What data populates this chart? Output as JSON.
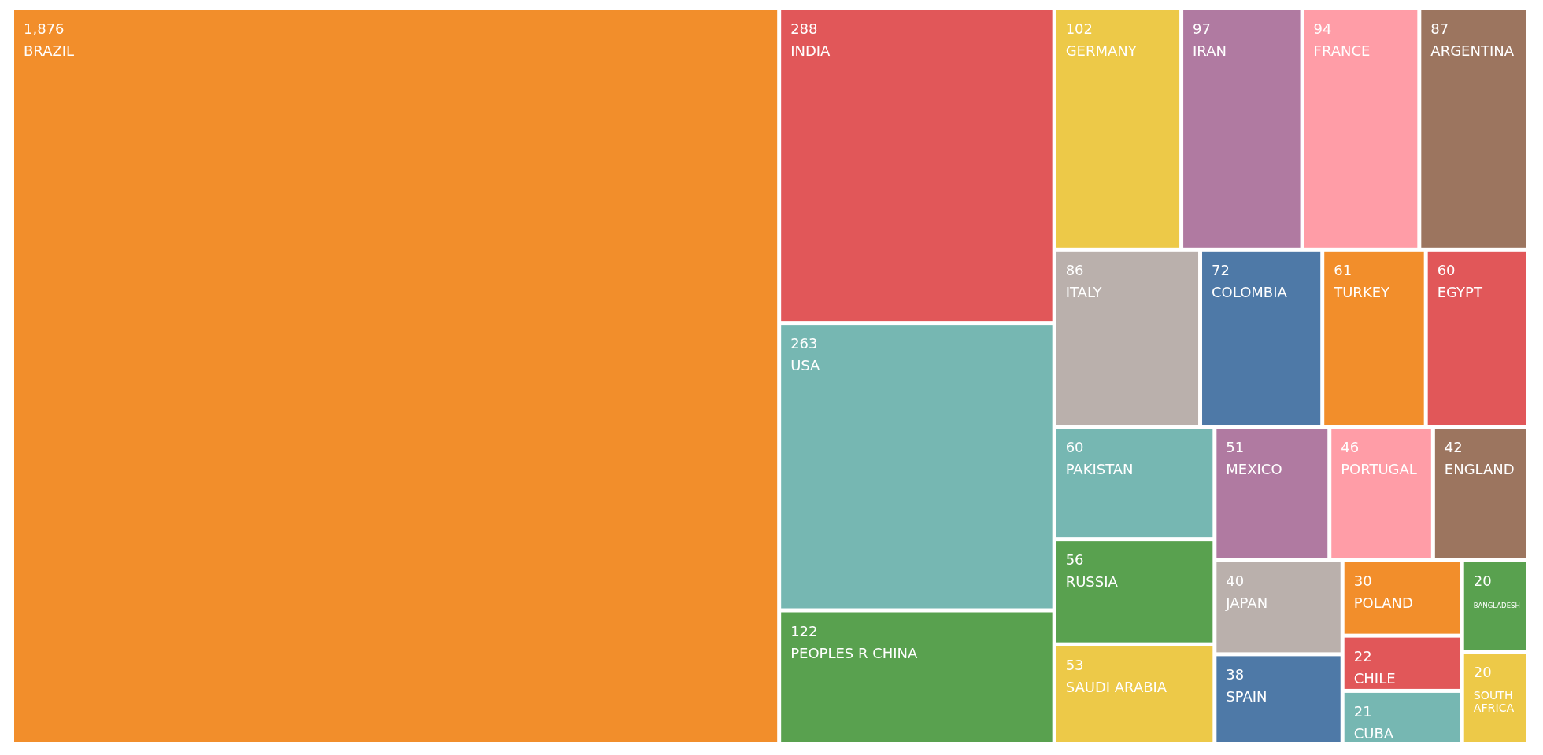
{
  "chart_data": {
    "type": "other",
    "categories": [
      "BRAZIL",
      "INDIA",
      "USA",
      "PEOPLES R CHINA",
      "GERMANY",
      "IRAN",
      "FRANCE",
      "ARGENTINA",
      "ITALY",
      "COLOMBIA",
      "TURKEY",
      "EGYPT",
      "PAKISTAN",
      "RUSSIA",
      "SAUDI ARABIA",
      "MEXICO",
      "PORTUGAL",
      "ENGLAND",
      "JAPAN",
      "SPAIN",
      "POLAND",
      "CHILE",
      "CUBA",
      "BANGLADESH",
      "SOUTH AFRICA"
    ],
    "values": [
      1876,
      288,
      263,
      122,
      102,
      97,
      94,
      87,
      86,
      72,
      61,
      60,
      60,
      56,
      53,
      51,
      46,
      42,
      40,
      38,
      30,
      22,
      21,
      20,
      20
    ],
    "colors": [
      "#f28e2b",
      "#e15759",
      "#76b7b2",
      "#59a14f",
      "#edc948",
      "#b07aa1",
      "#ff9da7",
      "#9c755f",
      "#bab0ac",
      "#4e79a7",
      "#f28e2b",
      "#e15759",
      "#76b7b2",
      "#59a14f",
      "#edc948",
      "#b07aa1",
      "#ff9da7",
      "#9c755f",
      "#bab0ac",
      "#4e79a7",
      "#f28e2b",
      "#e15759",
      "#76b7b2",
      "#59a14f",
      "#edc948"
    ],
    "value_labels": [
      "1,876",
      "288",
      "263",
      "122",
      "102",
      "97",
      "94",
      "87",
      "86",
      "72",
      "61",
      "60",
      "60",
      "56",
      "53",
      "51",
      "46",
      "42",
      "40",
      "38",
      "30",
      "22",
      "21",
      "20",
      "20"
    ]
  }
}
